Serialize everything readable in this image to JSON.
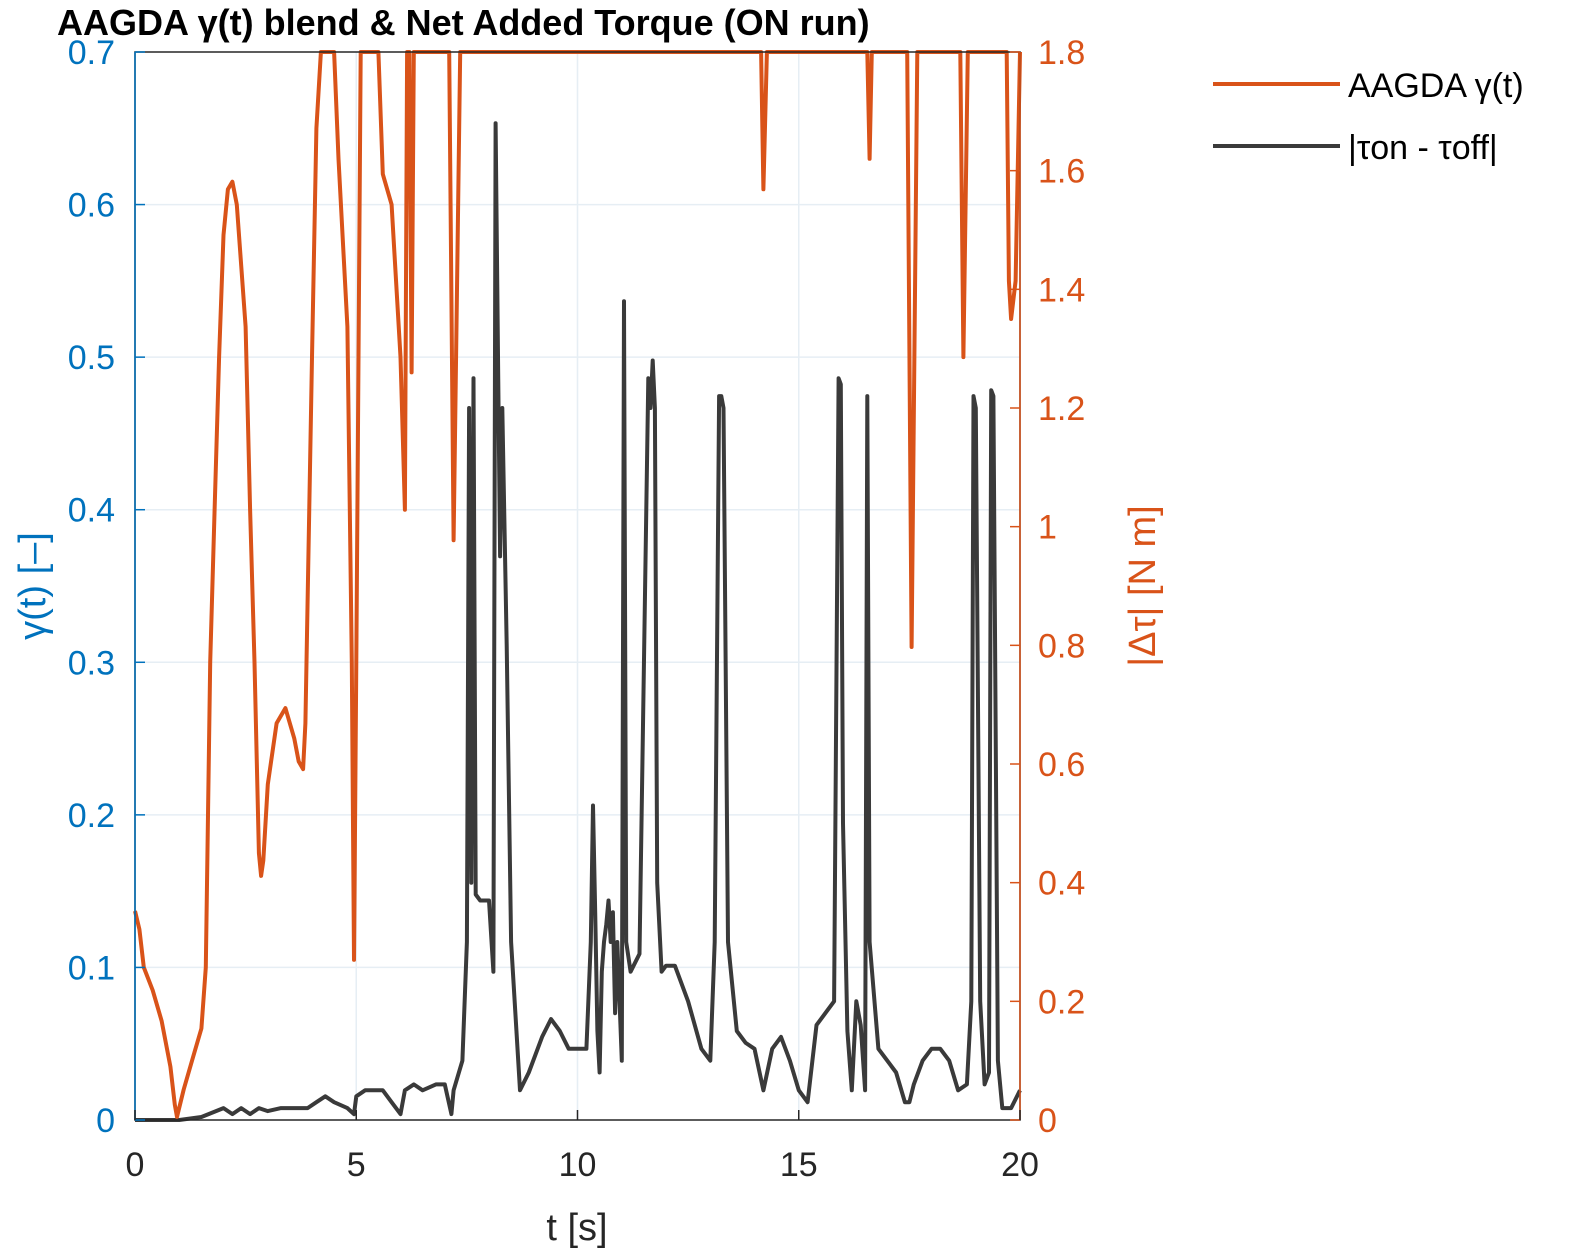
{
  "chart_data": {
    "type": "line",
    "title": "AAGDA γ(t) blend & Net Added Torque (ON run)",
    "xlabel": "t [s]",
    "ylabel_left": "γ(t) [–]",
    "ylabel_right": "|Δτ| [N m]",
    "xlim": [
      0,
      20
    ],
    "ylim_left": [
      0,
      0.7
    ],
    "ylim_right": [
      0,
      1.8
    ],
    "xticks": [
      0,
      5,
      10,
      15,
      20
    ],
    "yticks_left": [
      0,
      0.1,
      0.2,
      0.3,
      0.4,
      0.5,
      0.6,
      0.7
    ],
    "yticks_left_labels": [
      "0",
      "0.1",
      "0.2",
      "0.3",
      "0.4",
      "0.5",
      "0.6",
      "0.7"
    ],
    "yticks_right": [
      0,
      0.2,
      0.4,
      0.6,
      0.8,
      1.0,
      1.2,
      1.4,
      1.6,
      1.8
    ],
    "yticks_right_labels": [
      "0",
      "0.2",
      "0.4",
      "0.6",
      "0.8",
      "1",
      "1.2",
      "1.4",
      "1.6",
      "1.8"
    ],
    "grid": true,
    "legend_position": "outside-top-right",
    "colors": {
      "left_axis": "#0072BD",
      "right_axis": "#D95319",
      "gamma": "#D95319",
      "torque": "#3a3a3a",
      "grid": "#e6eef4"
    },
    "series": [
      {
        "name": "AAGDA γ(t)",
        "axis": "left",
        "points": [
          [
            0,
            0.137
          ],
          [
            0.1,
            0.125
          ],
          [
            0.2,
            0.1
          ],
          [
            0.4,
            0.085
          ],
          [
            0.6,
            0.065
          ],
          [
            0.8,
            0.035
          ],
          [
            0.9,
            0.01
          ],
          [
            0.95,
            0.002
          ],
          [
            1.1,
            0.02
          ],
          [
            1.3,
            0.04
          ],
          [
            1.5,
            0.06
          ],
          [
            1.6,
            0.1
          ],
          [
            1.7,
            0.3
          ],
          [
            1.8,
            0.4
          ],
          [
            1.9,
            0.5
          ],
          [
            2.0,
            0.58
          ],
          [
            2.1,
            0.61
          ],
          [
            2.2,
            0.615
          ],
          [
            2.3,
            0.6
          ],
          [
            2.4,
            0.56
          ],
          [
            2.5,
            0.52
          ],
          [
            2.6,
            0.4
          ],
          [
            2.7,
            0.3
          ],
          [
            2.8,
            0.175
          ],
          [
            2.85,
            0.16
          ],
          [
            2.9,
            0.17
          ],
          [
            3.0,
            0.22
          ],
          [
            3.2,
            0.26
          ],
          [
            3.4,
            0.27
          ],
          [
            3.6,
            0.25
          ],
          [
            3.7,
            0.235
          ],
          [
            3.8,
            0.23
          ],
          [
            3.85,
            0.26
          ],
          [
            4.0,
            0.5
          ],
          [
            4.1,
            0.65
          ],
          [
            4.2,
            0.7
          ],
          [
            4.4,
            0.7
          ],
          [
            4.5,
            0.7
          ],
          [
            4.6,
            0.63
          ],
          [
            4.8,
            0.52
          ],
          [
            4.9,
            0.3
          ],
          [
            4.95,
            0.105
          ],
          [
            5.0,
            0.3
          ],
          [
            5.1,
            0.7
          ],
          [
            5.5,
            0.7
          ],
          [
            5.6,
            0.62
          ],
          [
            5.8,
            0.6
          ],
          [
            6.0,
            0.5
          ],
          [
            6.1,
            0.4
          ],
          [
            6.15,
            0.7
          ],
          [
            6.2,
            0.7
          ],
          [
            6.25,
            0.49
          ],
          [
            6.3,
            0.7
          ],
          [
            7.1,
            0.7
          ],
          [
            7.2,
            0.38
          ],
          [
            7.35,
            0.7
          ],
          [
            14.15,
            0.7
          ],
          [
            14.2,
            0.61
          ],
          [
            14.28,
            0.7
          ],
          [
            16.55,
            0.7
          ],
          [
            16.6,
            0.63
          ],
          [
            16.65,
            0.7
          ],
          [
            17.45,
            0.7
          ],
          [
            17.55,
            0.31
          ],
          [
            17.68,
            0.7
          ],
          [
            18.65,
            0.7
          ],
          [
            18.72,
            0.5
          ],
          [
            18.82,
            0.7
          ],
          [
            19.7,
            0.7
          ],
          [
            19.75,
            0.55
          ],
          [
            19.8,
            0.525
          ],
          [
            19.9,
            0.55
          ],
          [
            20,
            0.7
          ]
        ]
      },
      {
        "name": "|τon - τoff|",
        "axis": "right",
        "points": [
          [
            0,
            0.0
          ],
          [
            0.5,
            0.0
          ],
          [
            1.0,
            0.0
          ],
          [
            1.5,
            0.005
          ],
          [
            2.0,
            0.02
          ],
          [
            2.2,
            0.01
          ],
          [
            2.4,
            0.02
          ],
          [
            2.6,
            0.01
          ],
          [
            2.8,
            0.02
          ],
          [
            3.0,
            0.015
          ],
          [
            3.3,
            0.02
          ],
          [
            3.6,
            0.02
          ],
          [
            3.9,
            0.02
          ],
          [
            4.1,
            0.03
          ],
          [
            4.3,
            0.04
          ],
          [
            4.5,
            0.03
          ],
          [
            4.8,
            0.02
          ],
          [
            4.95,
            0.01
          ],
          [
            5.0,
            0.04
          ],
          [
            5.2,
            0.05
          ],
          [
            5.4,
            0.05
          ],
          [
            5.6,
            0.05
          ],
          [
            5.8,
            0.03
          ],
          [
            6.0,
            0.01
          ],
          [
            6.1,
            0.05
          ],
          [
            6.3,
            0.06
          ],
          [
            6.5,
            0.05
          ],
          [
            6.8,
            0.06
          ],
          [
            7.0,
            0.06
          ],
          [
            7.15,
            0.01
          ],
          [
            7.2,
            0.05
          ],
          [
            7.4,
            0.1
          ],
          [
            7.5,
            0.3
          ],
          [
            7.55,
            1.2
          ],
          [
            7.6,
            0.4
          ],
          [
            7.65,
            1.25
          ],
          [
            7.7,
            0.38
          ],
          [
            7.8,
            0.37
          ],
          [
            8.0,
            0.37
          ],
          [
            8.1,
            0.25
          ],
          [
            8.15,
            1.68
          ],
          [
            8.2,
            1.32
          ],
          [
            8.25,
            0.95
          ],
          [
            8.3,
            1.2
          ],
          [
            8.4,
            0.8
          ],
          [
            8.5,
            0.3
          ],
          [
            8.7,
            0.05
          ],
          [
            8.9,
            0.08
          ],
          [
            9.2,
            0.14
          ],
          [
            9.4,
            0.17
          ],
          [
            9.6,
            0.15
          ],
          [
            9.8,
            0.12
          ],
          [
            10.0,
            0.12
          ],
          [
            10.2,
            0.12
          ],
          [
            10.3,
            0.3
          ],
          [
            10.35,
            0.53
          ],
          [
            10.4,
            0.35
          ],
          [
            10.45,
            0.15
          ],
          [
            10.5,
            0.08
          ],
          [
            10.55,
            0.25
          ],
          [
            10.6,
            0.3
          ],
          [
            10.65,
            0.33
          ],
          [
            10.7,
            0.37
          ],
          [
            10.75,
            0.3
          ],
          [
            10.8,
            0.35
          ],
          [
            10.85,
            0.18
          ],
          [
            10.9,
            0.3
          ],
          [
            11.0,
            0.1
          ],
          [
            11.05,
            1.38
          ],
          [
            11.1,
            0.3
          ],
          [
            11.2,
            0.25
          ],
          [
            11.4,
            0.28
          ],
          [
            11.6,
            1.25
          ],
          [
            11.65,
            1.2
          ],
          [
            11.7,
            1.28
          ],
          [
            11.75,
            1.2
          ],
          [
            11.8,
            0.4
          ],
          [
            11.9,
            0.25
          ],
          [
            12.0,
            0.26
          ],
          [
            12.2,
            0.26
          ],
          [
            12.5,
            0.2
          ],
          [
            12.8,
            0.12
          ],
          [
            13.0,
            0.1
          ],
          [
            13.1,
            0.3
          ],
          [
            13.2,
            1.22
          ],
          [
            13.25,
            1.22
          ],
          [
            13.3,
            1.2
          ],
          [
            13.4,
            0.3
          ],
          [
            13.6,
            0.15
          ],
          [
            13.8,
            0.13
          ],
          [
            14.0,
            0.12
          ],
          [
            14.2,
            0.05
          ],
          [
            14.4,
            0.12
          ],
          [
            14.6,
            0.14
          ],
          [
            14.8,
            0.1
          ],
          [
            15.0,
            0.05
          ],
          [
            15.2,
            0.03
          ],
          [
            15.4,
            0.16
          ],
          [
            15.6,
            0.18
          ],
          [
            15.8,
            0.2
          ],
          [
            15.9,
            1.25
          ],
          [
            15.95,
            1.24
          ],
          [
            16.0,
            0.5
          ],
          [
            16.1,
            0.15
          ],
          [
            16.2,
            0.05
          ],
          [
            16.3,
            0.2
          ],
          [
            16.4,
            0.16
          ],
          [
            16.5,
            0.05
          ],
          [
            16.55,
            1.22
          ],
          [
            16.6,
            0.3
          ],
          [
            16.8,
            0.12
          ],
          [
            17.0,
            0.1
          ],
          [
            17.2,
            0.08
          ],
          [
            17.4,
            0.03
          ],
          [
            17.5,
            0.03
          ],
          [
            17.6,
            0.06
          ],
          [
            17.8,
            0.1
          ],
          [
            18.0,
            0.12
          ],
          [
            18.2,
            0.12
          ],
          [
            18.4,
            0.1
          ],
          [
            18.6,
            0.05
          ],
          [
            18.8,
            0.06
          ],
          [
            18.9,
            0.2
          ],
          [
            18.95,
            1.22
          ],
          [
            19.0,
            1.2
          ],
          [
            19.1,
            0.2
          ],
          [
            19.2,
            0.06
          ],
          [
            19.3,
            0.08
          ],
          [
            19.35,
            1.23
          ],
          [
            19.4,
            1.22
          ],
          [
            19.5,
            0.1
          ],
          [
            19.6,
            0.02
          ],
          [
            19.8,
            0.02
          ],
          [
            20,
            0.05
          ]
        ]
      }
    ]
  }
}
